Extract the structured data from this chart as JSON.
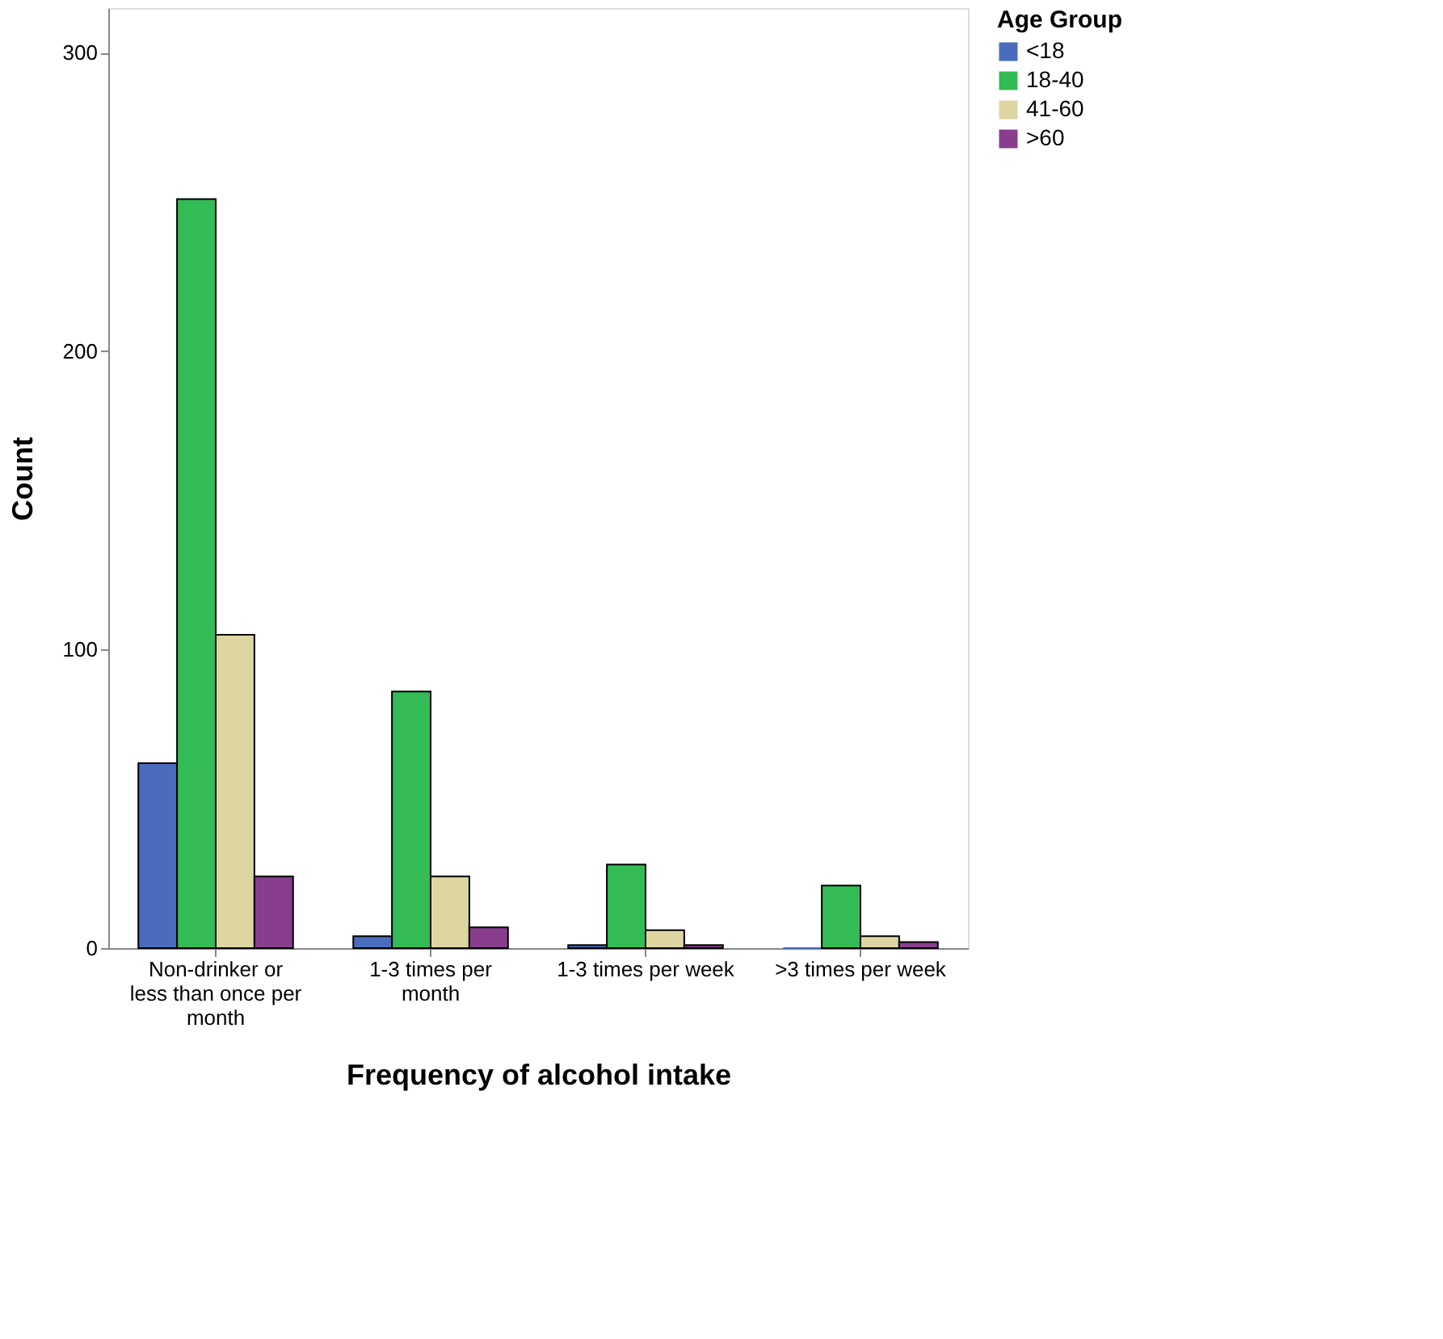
{
  "chart_data": {
    "type": "bar",
    "xlabel": "Frequency of alcohol intake",
    "ylabel": "Count",
    "legend_title": "Age Group",
    "categories": [
      "Non-drinker or less than once per month",
      "1-3 times per month",
      "1-3 times per week",
      ">3 times per week"
    ],
    "series": [
      {
        "name": "<18",
        "color": "#4a6cbd",
        "values": [
          62,
          4,
          1,
          0
        ]
      },
      {
        "name": "18-40",
        "color": "#33bb55",
        "values": [
          251,
          86,
          28,
          21
        ]
      },
      {
        "name": "41-60",
        "color": "#ddd6a3",
        "values": [
          105,
          24,
          6,
          4
        ]
      },
      {
        "name": ">60",
        "color": "#883e8c",
        "values": [
          24,
          7,
          1,
          2
        ]
      }
    ],
    "ylim": [
      0,
      315
    ],
    "yticks": [
      0,
      100,
      200,
      300
    ],
    "grid": false,
    "legend": "top right"
  }
}
